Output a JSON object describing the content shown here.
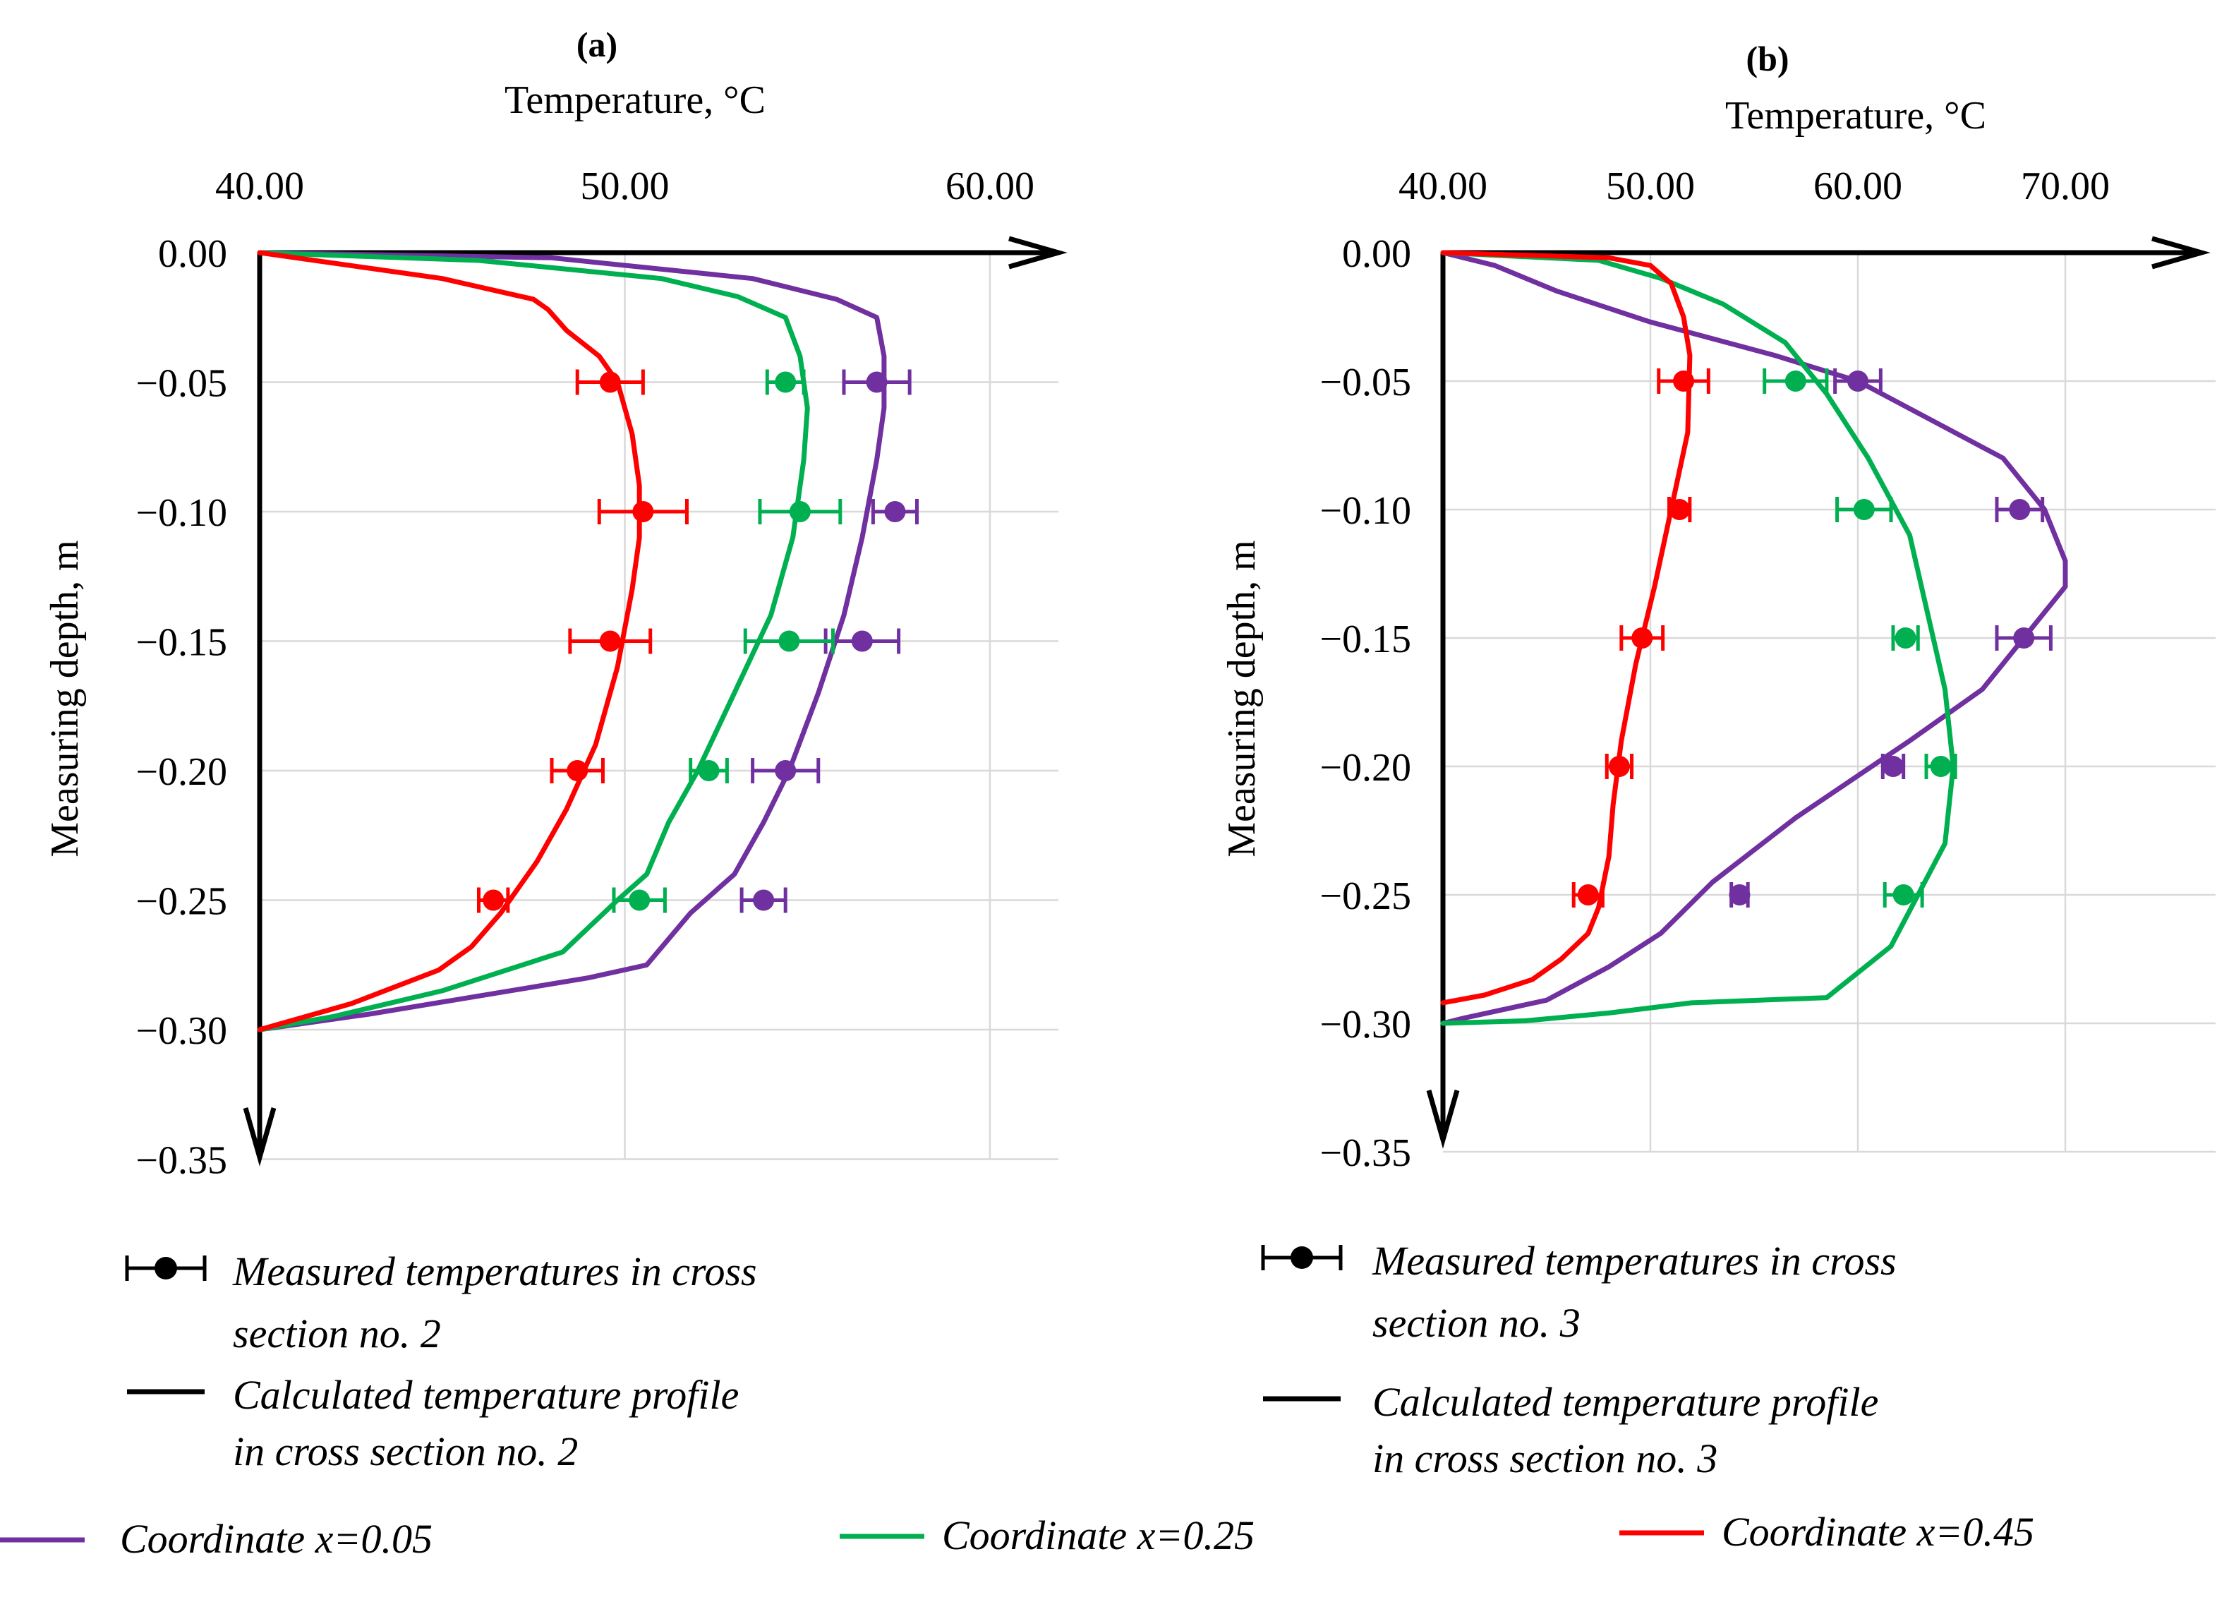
{
  "chart_data": [
    {
      "type": "line",
      "panel_label": "(a)",
      "xlabel": "Temperature, °C",
      "ylabel": "Measuring depth, m",
      "xlim": [
        40,
        62
      ],
      "ylim": [
        -0.35,
        0
      ],
      "x_ticks": [
        "40.00",
        "50.00",
        "60.00"
      ],
      "x_tick_values": [
        40,
        50,
        60
      ],
      "y_ticks": [
        "0.00",
        "−0.05",
        "−0.10",
        "−0.15",
        "−0.20",
        "−0.25",
        "−0.30",
        "−0.35"
      ],
      "y_tick_values": [
        0,
        -0.05,
        -0.1,
        -0.15,
        -0.2,
        -0.25,
        -0.3,
        -0.35
      ],
      "grid": true,
      "series": [
        {
          "name": "Coordinate x=0.05",
          "color": "#7030a0",
          "profile": {
            "x": [
              40.0,
              48.0,
              53.5,
              55.8,
              56.9,
              57.1,
              57.1,
              56.9,
              56.5,
              56.0,
              55.3,
              54.5,
              53.8,
              53.0,
              51.8,
              50.6,
              49.0,
              46.0,
              43.0,
              40.0
            ],
            "y": [
              0.0,
              -0.002,
              -0.01,
              -0.018,
              -0.025,
              -0.04,
              -0.06,
              -0.08,
              -0.11,
              -0.14,
              -0.17,
              -0.2,
              -0.22,
              -0.24,
              -0.255,
              -0.275,
              -0.28,
              -0.287,
              -0.294,
              -0.3
            ]
          },
          "measured": {
            "x": [
              56.9,
              57.4,
              56.5,
              54.4,
              53.8
            ],
            "y": [
              -0.05,
              -0.1,
              -0.15,
              -0.2,
              -0.25
            ],
            "xerr": [
              0.9,
              0.6,
              1.0,
              0.9,
              0.6
            ]
          }
        },
        {
          "name": "Coordinate x=0.25",
          "color": "#00b050",
          "profile": {
            "x": [
              40.0,
              46.0,
              51.0,
              53.1,
              54.4,
              54.8,
              55.0,
              54.9,
              54.6,
              54.0,
              53.0,
              52.0,
              51.2,
              50.6,
              49.8,
              48.3,
              45.0,
              42.0,
              40.0
            ],
            "y": [
              0.0,
              -0.003,
              -0.01,
              -0.017,
              -0.025,
              -0.04,
              -0.06,
              -0.08,
              -0.11,
              -0.14,
              -0.17,
              -0.2,
              -0.22,
              -0.24,
              -0.25,
              -0.27,
              -0.285,
              -0.295,
              -0.3
            ]
          },
          "measured": {
            "x": [
              54.4,
              54.8,
              54.5,
              52.3,
              50.4
            ],
            "y": [
              -0.05,
              -0.1,
              -0.15,
              -0.2,
              -0.25
            ],
            "xerr": [
              0.5,
              1.1,
              1.2,
              0.5,
              0.7
            ]
          }
        },
        {
          "name": "Coordinate x=0.45",
          "color": "#ff0000",
          "profile": {
            "x": [
              40.0,
              42.0,
              45.0,
              47.5,
              47.9,
              48.4,
              49.3,
              49.8,
              50.2,
              50.4,
              50.4,
              50.2,
              49.8,
              49.2,
              48.4,
              47.6,
              46.6,
              45.8,
              44.9,
              42.5,
              40.0
            ],
            "y": [
              0.0,
              -0.004,
              -0.01,
              -0.018,
              -0.022,
              -0.03,
              -0.04,
              -0.05,
              -0.07,
              -0.09,
              -0.11,
              -0.13,
              -0.16,
              -0.19,
              -0.215,
              -0.235,
              -0.255,
              -0.268,
              -0.277,
              -0.29,
              -0.3
            ]
          },
          "measured": {
            "x": [
              49.6,
              50.5,
              49.6,
              48.7,
              46.4
            ],
            "y": [
              -0.05,
              -0.1,
              -0.15,
              -0.2,
              -0.25
            ],
            "xerr": [
              0.9,
              1.2,
              1.1,
              0.7,
              0.4
            ]
          }
        }
      ],
      "legend": {
        "measured_label": "Measured temperatures in cross section no. 2",
        "calculated_label": "Calculated temperature profile in cross section no. 2"
      }
    },
    {
      "type": "line",
      "panel_label": "(b)",
      "xlabel": "Temperature, °C",
      "ylabel": "Measuring depth, m",
      "xlim": [
        40,
        77
      ],
      "ylim": [
        -0.35,
        0
      ],
      "x_ticks": [
        "40.00",
        "50.00",
        "60.00",
        "70.00"
      ],
      "x_tick_values": [
        40,
        50,
        60,
        70
      ],
      "y_ticks": [
        "0.00",
        "−0.05",
        "−0.10",
        "−0.15",
        "−0.20",
        "−0.25",
        "−0.30",
        "−0.35"
      ],
      "y_tick_values": [
        0,
        -0.05,
        -0.1,
        -0.15,
        -0.2,
        -0.25,
        -0.3,
        -0.35
      ],
      "grid": true,
      "series": [
        {
          "name": "Coordinate x=0.05",
          "color": "#7030a0",
          "profile": {
            "x": [
              40.0,
              42.5,
              45.5,
              50.0,
              56.0,
              60.0,
              67.0,
              69.0,
              70.0,
              70.0,
              69.0,
              66.0,
              62.5,
              57.0,
              53.0,
              50.5,
              48.0,
              45.0,
              41.0,
              40.0
            ],
            "y": [
              0.0,
              -0.005,
              -0.015,
              -0.027,
              -0.04,
              -0.05,
              -0.08,
              -0.1,
              -0.12,
              -0.13,
              -0.14,
              -0.17,
              -0.19,
              -0.22,
              -0.245,
              -0.265,
              -0.278,
              -0.291,
              -0.298,
              -0.3
            ]
          },
          "measured": {
            "x": [
              60.0,
              67.8,
              68.0,
              61.7,
              54.3
            ],
            "y": [
              -0.05,
              -0.1,
              -0.15,
              -0.2,
              -0.25
            ],
            "xerr": [
              1.1,
              1.1,
              1.3,
              0.5,
              0.4
            ]
          }
        },
        {
          "name": "Coordinate x=0.25",
          "color": "#00b050",
          "profile": {
            "x": [
              40.0,
              47.5,
              50.5,
              53.5,
              56.5,
              58.5,
              60.5,
              62.5,
              64.2,
              64.6,
              64.2,
              61.6,
              58.5,
              52.0,
              48.0,
              44.0,
              40.0
            ],
            "y": [
              0.0,
              -0.003,
              -0.01,
              -0.02,
              -0.035,
              -0.055,
              -0.08,
              -0.11,
              -0.17,
              -0.2,
              -0.23,
              -0.27,
              -0.29,
              -0.292,
              -0.296,
              -0.299,
              -0.3
            ]
          },
          "measured": {
            "x": [
              57.0,
              60.3,
              62.3,
              64.0,
              62.2
            ],
            "y": [
              -0.05,
              -0.1,
              -0.15,
              -0.2,
              -0.25
            ],
            "xerr": [
              1.5,
              1.3,
              0.6,
              0.7,
              0.9
            ]
          }
        },
        {
          "name": "Coordinate x=0.45",
          "color": "#ff0000",
          "profile": {
            "x": [
              40.0,
              48.0,
              50.0,
              51.0,
              51.6,
              51.9,
              51.8,
              51.0,
              50.2,
              49.3,
              48.6,
              48.2,
              48.0,
              47.5,
              47.0,
              45.7,
              44.3,
              42.0,
              40.0
            ],
            "y": [
              0.0,
              -0.002,
              -0.005,
              -0.012,
              -0.025,
              -0.04,
              -0.07,
              -0.1,
              -0.13,
              -0.16,
              -0.19,
              -0.215,
              -0.235,
              -0.255,
              -0.265,
              -0.275,
              -0.283,
              -0.289,
              -0.292
            ]
          },
          "measured": {
            "x": [
              51.6,
              51.4,
              49.6,
              48.5,
              47.0
            ],
            "y": [
              -0.05,
              -0.1,
              -0.15,
              -0.2,
              -0.25
            ],
            "xerr": [
              1.2,
              0.5,
              1.0,
              0.6,
              0.7
            ]
          }
        }
      ],
      "legend": {
        "measured_label": "Measured temperatures in cross section no. 3",
        "calculated_label": "Calculated temperature profile in cross section no. 3"
      }
    }
  ],
  "shared_legend": [
    {
      "label": "Coordinate x=0.05",
      "color": "#7030a0"
    },
    {
      "label": "Coordinate x=0.25",
      "color": "#00b050"
    },
    {
      "label": "Coordinate x=0.45",
      "color": "#ff0000"
    }
  ]
}
